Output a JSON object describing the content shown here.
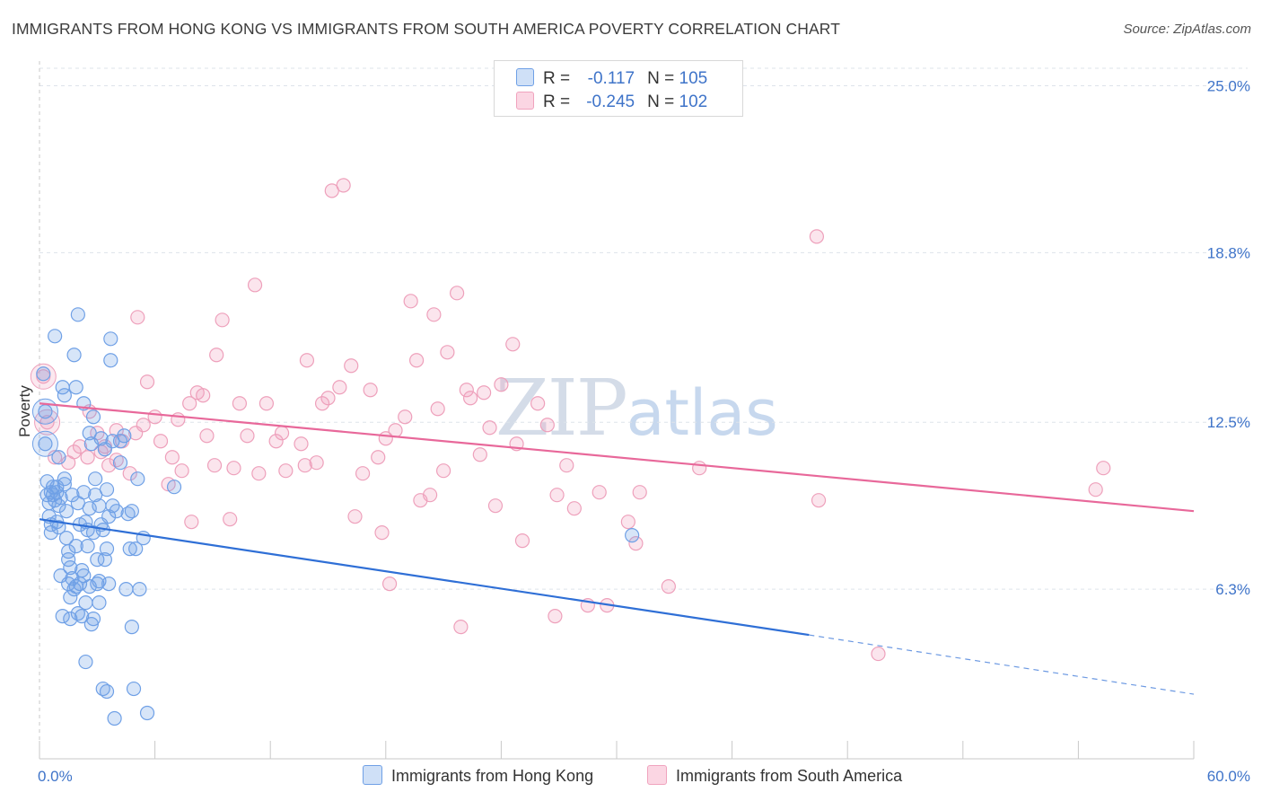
{
  "title": "IMMIGRANTS FROM HONG KONG VS IMMIGRANTS FROM SOUTH AMERICA POVERTY CORRELATION CHART",
  "source": "Source: ZipAtlas.com",
  "watermark": {
    "zip": "ZIP",
    "atlas": "atlas"
  },
  "legend": [
    {
      "r_label": "R =",
      "r_value": "-0.117",
      "n_label": "N =",
      "n_value": "105",
      "color": "#6fa0e6"
    },
    {
      "r_label": "R =",
      "r_value": "-0.245",
      "n_label": "N =",
      "n_value": "102",
      "color": "#f0a3be"
    }
  ],
  "chart_data": {
    "type": "scatter",
    "title": "IMMIGRANTS FROM HONG KONG VS IMMIGRANTS FROM SOUTH AMERICA POVERTY CORRELATION CHART",
    "xlabel": "",
    "ylabel": "Poverty",
    "xlim": [
      0,
      60
    ],
    "ylim": [
      0,
      26.25
    ],
    "x_tick_labels": [
      "0.0%",
      "60.0%"
    ],
    "y_ticks": [
      6.3,
      12.5,
      18.8,
      25.0
    ],
    "y_tick_labels": [
      "6.3%",
      "12.5%",
      "18.8%",
      "25.0%"
    ],
    "grid": "horizontal dashed",
    "legend_position": "top-center",
    "series": [
      {
        "name": "Immigrants from Hong Kong",
        "color": "#5a8fdc",
        "trend": {
          "x": [
            0,
            40
          ],
          "y": [
            8.9,
            4.6
          ],
          "dashed_to": [
            60,
            2.4
          ],
          "color": "#2f6fd6"
        },
        "points": [
          [
            0.2,
            14.3
          ],
          [
            0.3,
            12.9
          ],
          [
            0.3,
            11.7
          ],
          [
            0.4,
            10.3
          ],
          [
            0.4,
            9.8
          ],
          [
            0.5,
            9.5
          ],
          [
            0.5,
            9.0
          ],
          [
            0.6,
            8.7
          ],
          [
            0.6,
            8.4
          ],
          [
            0.7,
            10.1
          ],
          [
            0.7,
            9.8
          ],
          [
            0.8,
            15.7
          ],
          [
            0.8,
            9.6
          ],
          [
            0.9,
            9.9
          ],
          [
            0.9,
            8.8
          ],
          [
            1.0,
            9.4
          ],
          [
            1.0,
            8.6
          ],
          [
            1.1,
            9.7
          ],
          [
            1.1,
            6.8
          ],
          [
            1.2,
            5.3
          ],
          [
            1.2,
            13.8
          ],
          [
            1.3,
            13.5
          ],
          [
            1.3,
            10.4
          ],
          [
            1.4,
            9.2
          ],
          [
            1.4,
            8.2
          ],
          [
            1.5,
            7.7
          ],
          [
            1.5,
            7.4
          ],
          [
            1.5,
            6.5
          ],
          [
            1.6,
            6.0
          ],
          [
            1.6,
            5.2
          ],
          [
            1.7,
            9.8
          ],
          [
            1.7,
            6.7
          ],
          [
            1.8,
            15.0
          ],
          [
            1.8,
            6.3
          ],
          [
            1.9,
            7.9
          ],
          [
            1.9,
            6.4
          ],
          [
            2.0,
            16.5
          ],
          [
            2.0,
            9.5
          ],
          [
            2.1,
            8.7
          ],
          [
            2.1,
            6.5
          ],
          [
            2.2,
            5.3
          ],
          [
            2.2,
            7.0
          ],
          [
            2.3,
            13.2
          ],
          [
            2.3,
            9.9
          ],
          [
            2.3,
            6.8
          ],
          [
            2.4,
            5.8
          ],
          [
            2.4,
            3.6
          ],
          [
            2.5,
            8.5
          ],
          [
            2.5,
            7.9
          ],
          [
            2.6,
            12.1
          ],
          [
            2.6,
            9.3
          ],
          [
            2.6,
            6.4
          ],
          [
            2.7,
            5.0
          ],
          [
            2.7,
            11.7
          ],
          [
            2.8,
            12.7
          ],
          [
            2.8,
            8.4
          ],
          [
            2.9,
            10.4
          ],
          [
            2.9,
            9.8
          ],
          [
            3.0,
            7.4
          ],
          [
            3.0,
            6.5
          ],
          [
            3.1,
            9.4
          ],
          [
            3.1,
            5.8
          ],
          [
            3.2,
            11.9
          ],
          [
            3.2,
            8.7
          ],
          [
            3.3,
            8.5
          ],
          [
            3.3,
            2.6
          ],
          [
            3.4,
            11.5
          ],
          [
            3.4,
            7.4
          ],
          [
            3.5,
            7.8
          ],
          [
            3.5,
            2.5
          ],
          [
            3.6,
            9.0
          ],
          [
            3.6,
            6.5
          ],
          [
            3.7,
            15.6
          ],
          [
            3.7,
            14.8
          ],
          [
            3.8,
            11.8
          ],
          [
            3.8,
            9.4
          ],
          [
            3.9,
            1.5
          ],
          [
            4.0,
            9.2
          ],
          [
            4.2,
            11.8
          ],
          [
            4.2,
            11.0
          ],
          [
            4.4,
            12.0
          ],
          [
            4.5,
            6.3
          ],
          [
            4.7,
            7.8
          ],
          [
            4.8,
            4.9
          ],
          [
            4.8,
            9.2
          ],
          [
            4.9,
            2.6
          ],
          [
            5.0,
            7.8
          ],
          [
            5.1,
            10.4
          ],
          [
            5.2,
            6.3
          ],
          [
            5.4,
            8.2
          ],
          [
            5.6,
            1.7
          ],
          [
            7.0,
            10.1
          ],
          [
            30.8,
            8.3
          ],
          [
            1.9,
            13.8
          ],
          [
            1.3,
            10.2
          ],
          [
            0.6,
            9.9
          ],
          [
            2.4,
            8.8
          ],
          [
            3.1,
            6.6
          ],
          [
            4.6,
            9.1
          ],
          [
            1.0,
            11.2
          ],
          [
            2.0,
            5.4
          ],
          [
            0.9,
            10.1
          ],
          [
            3.5,
            10.0
          ],
          [
            1.6,
            7.1
          ],
          [
            2.8,
            5.2
          ]
        ]
      },
      {
        "name": "Immigrants from South America",
        "color": "#f0a3be",
        "trend": {
          "x": [
            0,
            60
          ],
          "y": [
            13.2,
            9.2
          ],
          "color": "#e8689a"
        },
        "points": [
          [
            0.2,
            14.2
          ],
          [
            0.4,
            12.5
          ],
          [
            0.8,
            11.2
          ],
          [
            1.5,
            11.0
          ],
          [
            1.8,
            11.4
          ],
          [
            2.1,
            11.6
          ],
          [
            2.5,
            11.2
          ],
          [
            3.0,
            12.1
          ],
          [
            3.2,
            11.4
          ],
          [
            3.6,
            10.9
          ],
          [
            4.0,
            11.1
          ],
          [
            4.0,
            12.2
          ],
          [
            4.3,
            11.8
          ],
          [
            4.7,
            10.6
          ],
          [
            5.0,
            12.1
          ],
          [
            5.1,
            16.4
          ],
          [
            5.4,
            12.4
          ],
          [
            5.6,
            14.0
          ],
          [
            6.0,
            12.7
          ],
          [
            6.3,
            11.8
          ],
          [
            6.7,
            10.2
          ],
          [
            7.2,
            12.6
          ],
          [
            7.4,
            10.7
          ],
          [
            7.8,
            13.2
          ],
          [
            7.9,
            8.8
          ],
          [
            8.2,
            13.6
          ],
          [
            8.5,
            13.5
          ],
          [
            8.7,
            12.0
          ],
          [
            9.1,
            10.9
          ],
          [
            9.2,
            15.0
          ],
          [
            9.5,
            16.3
          ],
          [
            9.9,
            8.9
          ],
          [
            10.1,
            10.8
          ],
          [
            10.4,
            13.2
          ],
          [
            10.8,
            12.0
          ],
          [
            11.2,
            17.6
          ],
          [
            11.4,
            10.6
          ],
          [
            11.8,
            13.2
          ],
          [
            12.3,
            11.8
          ],
          [
            12.6,
            12.1
          ],
          [
            12.8,
            10.7
          ],
          [
            13.6,
            11.7
          ],
          [
            13.9,
            14.8
          ],
          [
            14.4,
            11.0
          ],
          [
            14.7,
            13.2
          ],
          [
            15.0,
            13.4
          ],
          [
            15.2,
            21.1
          ],
          [
            15.6,
            13.8
          ],
          [
            15.8,
            21.3
          ],
          [
            16.2,
            14.6
          ],
          [
            16.4,
            9.0
          ],
          [
            16.8,
            10.6
          ],
          [
            17.2,
            13.7
          ],
          [
            17.6,
            11.2
          ],
          [
            17.8,
            8.4
          ],
          [
            18.0,
            11.9
          ],
          [
            18.2,
            6.5
          ],
          [
            18.5,
            12.2
          ],
          [
            19.0,
            12.7
          ],
          [
            19.3,
            17.0
          ],
          [
            19.6,
            14.8
          ],
          [
            20.3,
            9.8
          ],
          [
            20.5,
            16.5
          ],
          [
            20.7,
            13.0
          ],
          [
            21.0,
            10.7
          ],
          [
            21.2,
            15.1
          ],
          [
            21.7,
            17.3
          ],
          [
            21.9,
            4.9
          ],
          [
            22.2,
            13.7
          ],
          [
            22.4,
            13.4
          ],
          [
            22.9,
            11.3
          ],
          [
            23.1,
            13.6
          ],
          [
            23.4,
            12.3
          ],
          [
            23.7,
            9.4
          ],
          [
            24.0,
            13.9
          ],
          [
            24.6,
            15.4
          ],
          [
            24.8,
            11.7
          ],
          [
            25.1,
            8.1
          ],
          [
            25.9,
            13.2
          ],
          [
            26.4,
            12.4
          ],
          [
            26.8,
            5.3
          ],
          [
            26.9,
            9.8
          ],
          [
            27.4,
            10.9
          ],
          [
            27.8,
            9.3
          ],
          [
            28.5,
            5.7
          ],
          [
            29.1,
            9.9
          ],
          [
            29.5,
            5.7
          ],
          [
            30.6,
            8.8
          ],
          [
            31.0,
            8.0
          ],
          [
            31.2,
            9.9
          ],
          [
            32.7,
            6.4
          ],
          [
            34.3,
            10.8
          ],
          [
            40.4,
            19.4
          ],
          [
            40.5,
            9.6
          ],
          [
            43.6,
            3.9
          ],
          [
            54.9,
            10.0
          ],
          [
            55.3,
            10.8
          ],
          [
            13.8,
            10.9
          ],
          [
            3.4,
            11.6
          ],
          [
            6.9,
            11.2
          ],
          [
            19.8,
            9.6
          ],
          [
            2.6,
            12.9
          ]
        ]
      }
    ]
  },
  "bottom_legend": [
    {
      "label": "Immigrants from Hong Kong",
      "color": "#6fa0e6"
    },
    {
      "label": "Immigrants from South America",
      "color": "#f0a3be"
    }
  ]
}
